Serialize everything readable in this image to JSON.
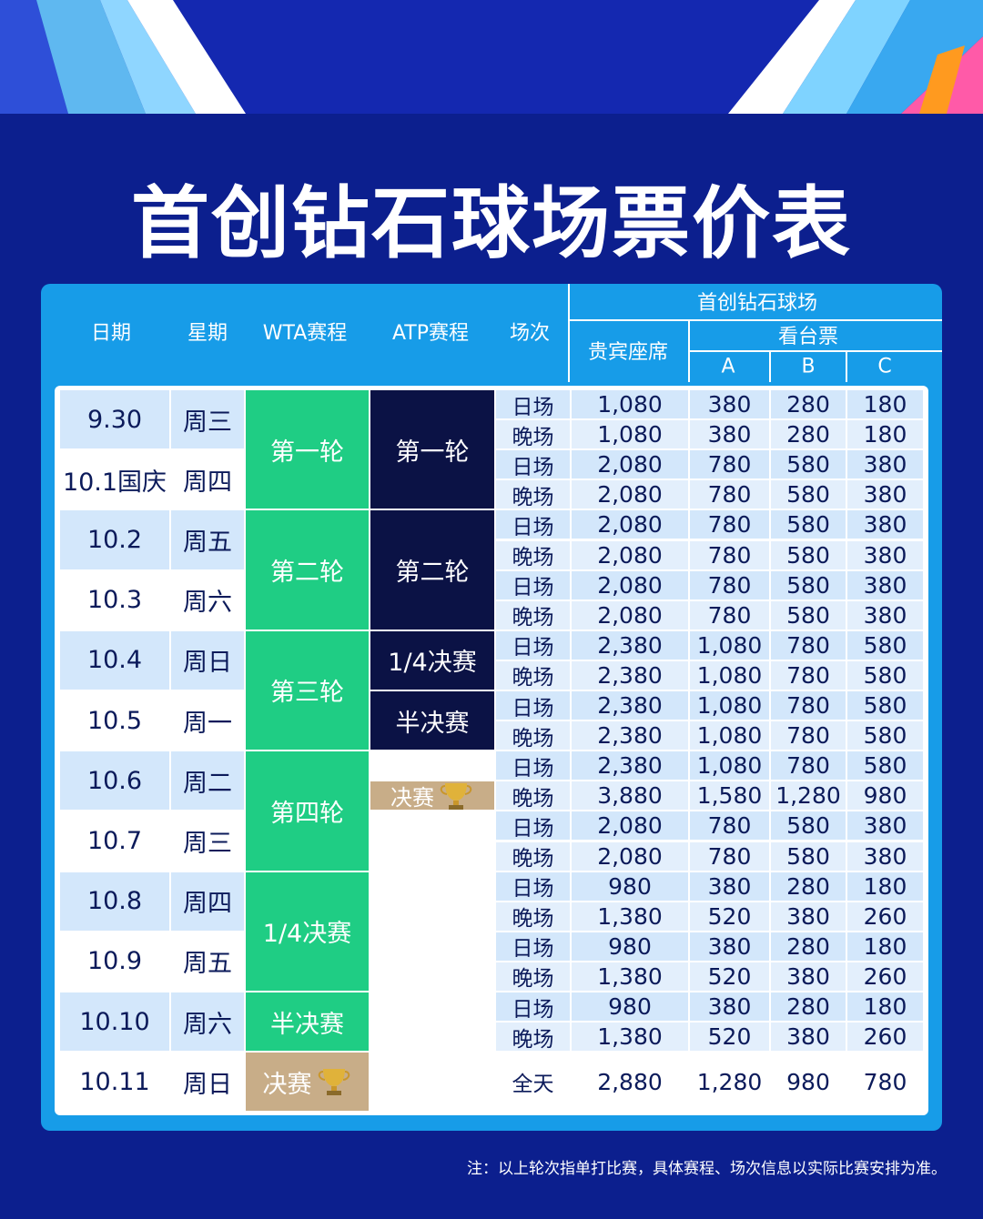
{
  "title": "首创钻石球场票价表",
  "table": {
    "header": {
      "date": "日期",
      "weekday": "星期",
      "wta": "WTA赛程",
      "atp": "ATP赛程",
      "session": "场次",
      "venue": "首创钻石球场",
      "vip": "贵宾座席",
      "stand": "看台票",
      "a": "A",
      "b": "B",
      "c": "C"
    },
    "days": [
      {
        "date": "9.30",
        "weekday": "周三"
      },
      {
        "date": "10.1国庆",
        "weekday": "周四"
      },
      {
        "date": "10.2",
        "weekday": "周五"
      },
      {
        "date": "10.3",
        "weekday": "周六"
      },
      {
        "date": "10.4",
        "weekday": "周日"
      },
      {
        "date": "10.5",
        "weekday": "周一"
      },
      {
        "date": "10.6",
        "weekday": "周二"
      },
      {
        "date": "10.7",
        "weekday": "周三"
      },
      {
        "date": "10.8",
        "weekday": "周四"
      },
      {
        "date": "10.9",
        "weekday": "周五"
      },
      {
        "date": "10.10",
        "weekday": "周六"
      },
      {
        "date": "10.11",
        "weekday": "周日"
      }
    ],
    "wta_rounds": [
      "第一轮",
      "第二轮",
      "第三轮",
      "第四轮",
      "1/4决赛",
      "半决赛",
      "决赛"
    ],
    "atp_rounds": [
      "第一轮",
      "第二轮",
      "1/4决赛",
      "半决赛",
      "决赛"
    ],
    "sessions": [
      {
        "session": "日场",
        "vip": "1,080",
        "a": "380",
        "b": "280",
        "c": "180"
      },
      {
        "session": "晚场",
        "vip": "1,080",
        "a": "380",
        "b": "280",
        "c": "180"
      },
      {
        "session": "日场",
        "vip": "2,080",
        "a": "780",
        "b": "580",
        "c": "380"
      },
      {
        "session": "晚场",
        "vip": "2,080",
        "a": "780",
        "b": "580",
        "c": "380"
      },
      {
        "session": "日场",
        "vip": "2,080",
        "a": "780",
        "b": "580",
        "c": "380"
      },
      {
        "session": "晚场",
        "vip": "2,080",
        "a": "780",
        "b": "580",
        "c": "380"
      },
      {
        "session": "日场",
        "vip": "2,080",
        "a": "780",
        "b": "580",
        "c": "380"
      },
      {
        "session": "晚场",
        "vip": "2,080",
        "a": "780",
        "b": "580",
        "c": "380"
      },
      {
        "session": "日场",
        "vip": "2,380",
        "a": "1,080",
        "b": "780",
        "c": "580"
      },
      {
        "session": "晚场",
        "vip": "2,380",
        "a": "1,080",
        "b": "780",
        "c": "580"
      },
      {
        "session": "日场",
        "vip": "2,380",
        "a": "1,080",
        "b": "780",
        "c": "580"
      },
      {
        "session": "晚场",
        "vip": "2,380",
        "a": "1,080",
        "b": "780",
        "c": "580"
      },
      {
        "session": "日场",
        "vip": "2,380",
        "a": "1,080",
        "b": "780",
        "c": "580"
      },
      {
        "session": "晚场",
        "vip": "3,880",
        "a": "1,580",
        "b": "1,280",
        "c": "980"
      },
      {
        "session": "日场",
        "vip": "2,080",
        "a": "780",
        "b": "580",
        "c": "380"
      },
      {
        "session": "晚场",
        "vip": "2,080",
        "a": "780",
        "b": "580",
        "c": "380"
      },
      {
        "session": "日场",
        "vip": "980",
        "a": "380",
        "b": "280",
        "c": "180"
      },
      {
        "session": "晚场",
        "vip": "1,380",
        "a": "520",
        "b": "380",
        "c": "260"
      },
      {
        "session": "日场",
        "vip": "980",
        "a": "380",
        "b": "280",
        "c": "180"
      },
      {
        "session": "晚场",
        "vip": "1,380",
        "a": "520",
        "b": "380",
        "c": "260"
      },
      {
        "session": "日场",
        "vip": "980",
        "a": "380",
        "b": "280",
        "c": "180"
      },
      {
        "session": "晚场",
        "vip": "1,380",
        "a": "520",
        "b": "380",
        "c": "260"
      },
      {
        "session": "全天",
        "vip": "2,880",
        "a": "1,280",
        "b": "980",
        "c": "780"
      }
    ]
  },
  "footnote": "注：以上轮次指单打比赛，具体赛程、场次信息以实际比赛安排为准。"
}
